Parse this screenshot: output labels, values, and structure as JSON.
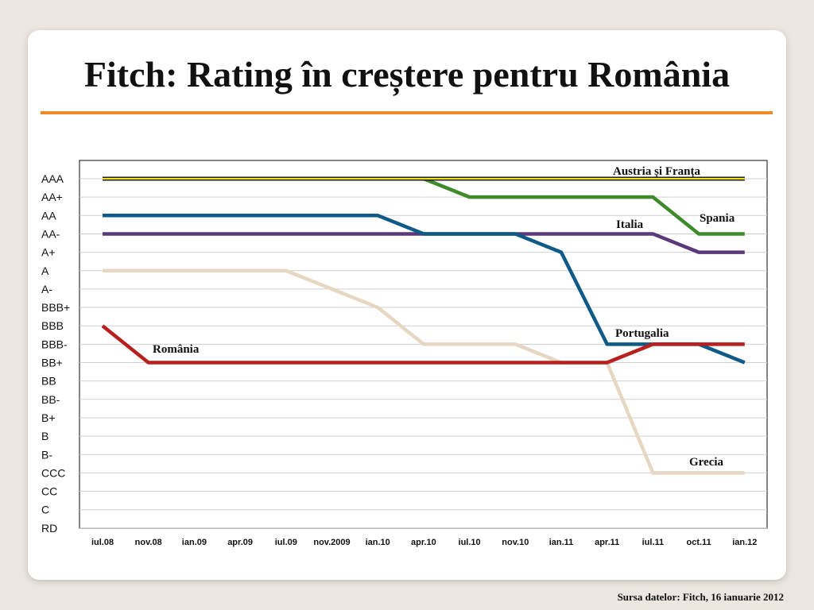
{
  "title": "Fitch: Rating în creștere pentru România",
  "source": "Sursa datelor: Fitch, 16 ianuarie 2012",
  "colors": {
    "accent_rule": "#ef8a2a",
    "background": "#ebe6e0"
  },
  "chart_data": {
    "type": "line",
    "title": "",
    "xlabel": "",
    "ylabel": "",
    "grid": true,
    "categories": [
      "iul.08",
      "nov.08",
      "ian.09",
      "apr.09",
      "iul.09",
      "nov.2009",
      "ian.10",
      "apr.10",
      "iul.10",
      "nov.10",
      "ian.11",
      "apr.11",
      "iul.11",
      "oct.11",
      "ian.12"
    ],
    "y_levels": [
      "AAA",
      "AA+",
      "AA",
      "AA-",
      "A+",
      "A",
      "A-",
      "BBB+",
      "BBB",
      "BBB-",
      "BB+",
      "BB",
      "BB-",
      "B+",
      "B",
      "B-",
      "CCC",
      "CC",
      "C",
      "RD"
    ],
    "series": [
      {
        "name": "Austria și Franța",
        "color": "#f2e01a",
        "values": [
          "AAA",
          "AAA",
          "AAA",
          "AAA",
          "AAA",
          "AAA",
          "AAA",
          "AAA",
          "AAA",
          "AAA",
          "AAA",
          "AAA",
          "AAA",
          "AAA",
          "AAA"
        ]
      },
      {
        "name": "Spania",
        "color": "#3f8b2c",
        "values": [
          "AAA",
          "AAA",
          "AAA",
          "AAA",
          "AAA",
          "AAA",
          "AAA",
          "AAA",
          "AA+",
          "AA+",
          "AA+",
          "AA+",
          "AA+",
          "AA-",
          "AA-"
        ]
      },
      {
        "name": "Italia",
        "color": "#5b3a7a",
        "values": [
          "AA-",
          "AA-",
          "AA-",
          "AA-",
          "AA-",
          "AA-",
          "AA-",
          "AA-",
          "AA-",
          "AA-",
          "AA-",
          "AA-",
          "AA-",
          "A+",
          "A+"
        ]
      },
      {
        "name": "Portugalia",
        "color": "#0f5a86",
        "values": [
          "AA",
          "AA",
          "AA",
          "AA",
          "AA",
          "AA",
          "AA",
          "AA-",
          "AA-",
          "AA-",
          "A+",
          "BBB-",
          "BBB-",
          "BBB-",
          "BB+"
        ]
      },
      {
        "name": "Grecia",
        "color": "#e6d7c2",
        "values": [
          "A",
          "A",
          "A",
          "A",
          "A",
          "A-",
          "BBB+",
          "BBB-",
          "BBB-",
          "BBB-",
          "BB+",
          "BB+",
          "CCC",
          "CCC",
          "CCC"
        ]
      },
      {
        "name": "România",
        "color": "#b81f1f",
        "values": [
          "BBB",
          "BB+",
          "BB+",
          "BB+",
          "BB+",
          "BB+",
          "BB+",
          "BB+",
          "BB+",
          "BB+",
          "BB+",
          "BB+",
          "BBB-",
          "BBB-",
          "BBB-"
        ]
      }
    ]
  }
}
